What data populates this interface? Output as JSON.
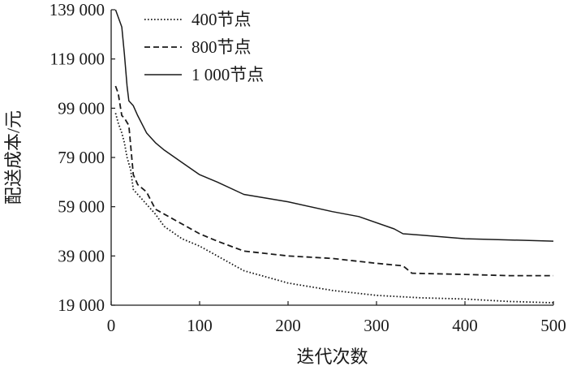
{
  "chart_data": {
    "type": "line",
    "title": "",
    "xlabel": "迭代次数",
    "ylabel": "配送成本/元",
    "xlim": [
      0,
      500
    ],
    "ylim": [
      19000,
      139000
    ],
    "xticks": [
      0,
      100,
      200,
      300,
      400,
      500
    ],
    "xtick_labels": [
      "0",
      "100",
      "200",
      "300",
      "400",
      "500"
    ],
    "yticks": [
      19000,
      39000,
      59000,
      79000,
      99000,
      119000,
      139000
    ],
    "ytick_labels": [
      "19 000",
      "39 000",
      "59 000",
      "79 000",
      "99 000",
      "119 000",
      "139 000"
    ],
    "grid": false,
    "legend_position": "top-left",
    "series": [
      {
        "name": "400节点",
        "style": "dotted",
        "color": "#1a1a1a",
        "x": [
          5,
          8,
          12,
          15,
          18,
          22,
          25,
          30,
          40,
          50,
          60,
          80,
          100,
          130,
          150,
          200,
          250,
          300,
          350,
          400,
          450,
          500
        ],
        "y": [
          97000,
          93000,
          89000,
          85000,
          79000,
          74000,
          66000,
          64000,
          60000,
          56000,
          51000,
          46000,
          43000,
          37000,
          33000,
          28000,
          25000,
          23000,
          22000,
          21500,
          20500,
          20000
        ]
      },
      {
        "name": "800节点",
        "style": "dashed",
        "color": "#1a1a1a",
        "x": [
          5,
          8,
          12,
          15,
          20,
          25,
          30,
          40,
          50,
          60,
          80,
          100,
          120,
          150,
          200,
          250,
          300,
          330,
          340,
          400,
          450,
          500
        ],
        "y": [
          108000,
          105000,
          96000,
          95000,
          92000,
          72000,
          68000,
          65000,
          58000,
          56000,
          52000,
          48000,
          45000,
          41000,
          39000,
          38000,
          36000,
          35000,
          32000,
          31500,
          31000,
          31000
        ]
      },
      {
        "name": "1 000节点",
        "style": "solid",
        "color": "#1a1a1a",
        "x": [
          5,
          8,
          12,
          15,
          18,
          20,
          25,
          30,
          40,
          50,
          60,
          80,
          100,
          120,
          150,
          200,
          250,
          280,
          320,
          330,
          350,
          400,
          450,
          500
        ],
        "y": [
          139000,
          136000,
          132000,
          121000,
          108000,
          102000,
          100000,
          96000,
          89000,
          85000,
          82000,
          77000,
          72000,
          69000,
          64000,
          61000,
          57000,
          55000,
          50000,
          48000,
          47500,
          46000,
          45500,
          45000
        ]
      }
    ]
  }
}
